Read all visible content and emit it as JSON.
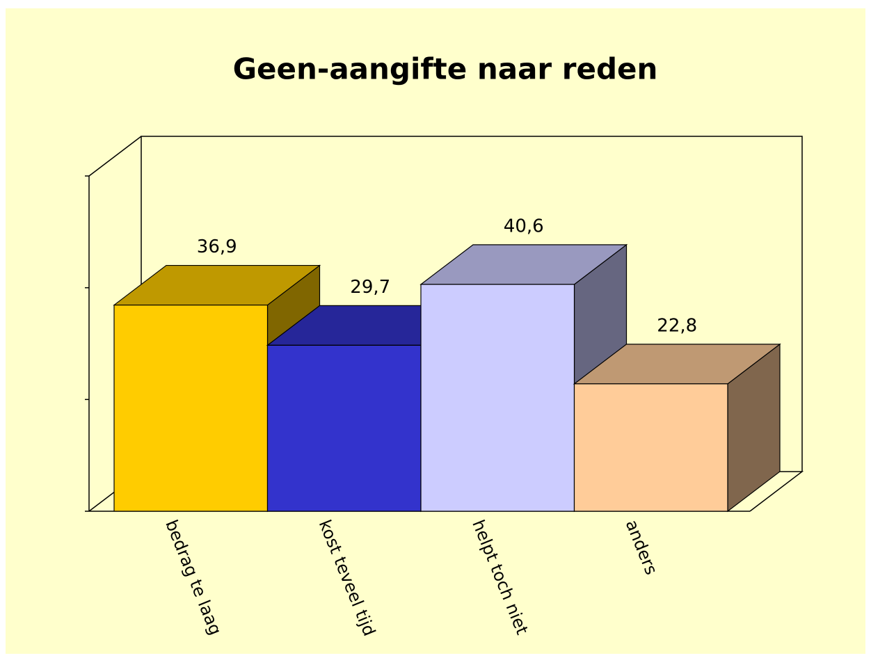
{
  "chart_data": {
    "type": "bar3d",
    "title": "Geen-aangifte naar reden",
    "categories": [
      "bedrag te laag",
      "kost teveel tijd",
      "helpt toch niet",
      "anders"
    ],
    "values": [
      36.9,
      29.7,
      40.6,
      22.8
    ],
    "value_labels": [
      "36,9",
      "29,7",
      "40,6",
      "22,8"
    ],
    "colors": [
      "#ffcc00",
      "#3333cc",
      "#ccccff",
      "#ffcc99"
    ],
    "ylim": [
      0,
      60
    ],
    "yticks": [
      0,
      20,
      40,
      60
    ]
  }
}
